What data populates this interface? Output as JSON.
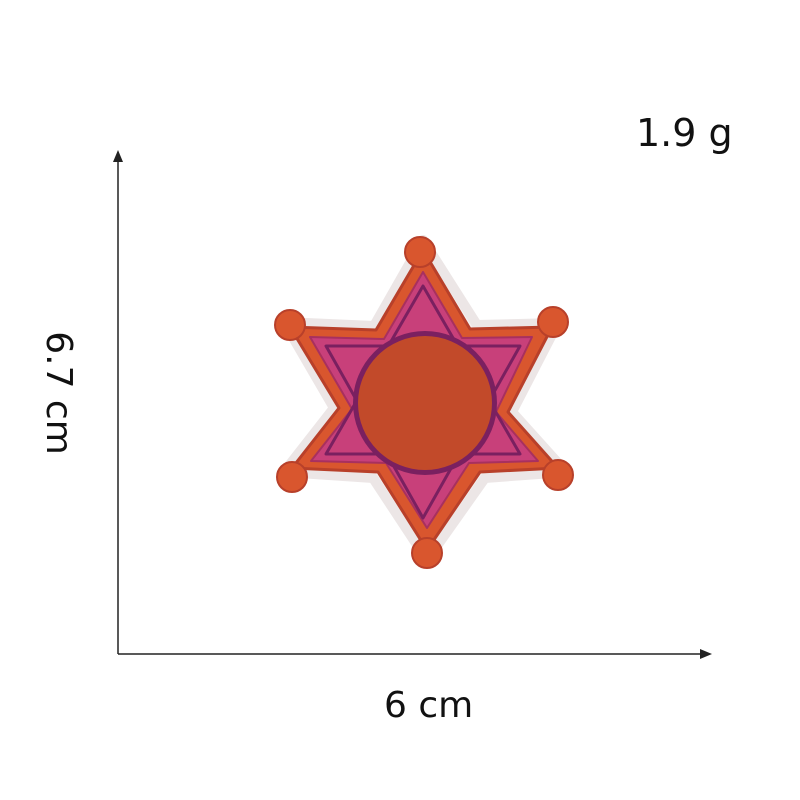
{
  "product": {
    "weight": "1.9 g",
    "width": "6 cm",
    "height": "6.7 cm",
    "patch_icon": "embroidered-six-point-star-badge-icon"
  },
  "colors": {
    "background": "#ffffff",
    "axis": "#222222",
    "star_orange": "#d9562e",
    "star_outline": "#b8402a",
    "star_magenta": "#c8407a",
    "star_inner_ring": "#7a2060",
    "center_disc": "#c24a2a"
  }
}
